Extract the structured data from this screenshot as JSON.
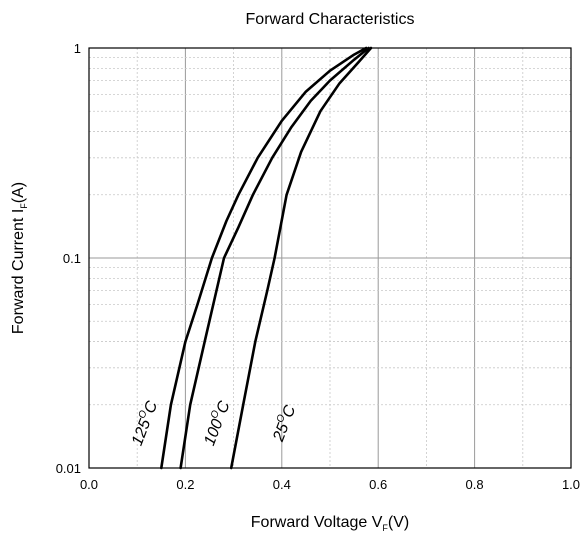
{
  "chart_data": {
    "type": "line",
    "title": "Forward Characteristics",
    "xlabel": {
      "main": "Forward Voltage V",
      "sub": "F",
      "suffix": "(V)"
    },
    "ylabel": {
      "main": "Forward Current I",
      "sub": "F",
      "suffix": "(A)"
    },
    "xlim": [
      0.0,
      1.0
    ],
    "ylim": [
      0.01,
      1
    ],
    "yscale": "log",
    "grid": true,
    "x_ticks": [
      "0.0",
      "0.2",
      "0.4",
      "0.6",
      "0.8",
      "1.0"
    ],
    "x_tick_values": [
      0.0,
      0.2,
      0.4,
      0.6,
      0.8,
      1.0
    ],
    "y_ticks": [
      "0.01",
      "0.1",
      "1"
    ],
    "y_tick_values": [
      0.01,
      0.1,
      1
    ],
    "series": [
      {
        "name": "125°C",
        "label": {
          "base": "125",
          "sup": "O",
          "unit": "C"
        },
        "x": [
          0.15,
          0.17,
          0.2,
          0.225,
          0.255,
          0.285,
          0.31,
          0.35,
          0.4,
          0.45,
          0.5,
          0.55,
          0.575
        ],
        "y": [
          0.01,
          0.02,
          0.04,
          0.06,
          0.1,
          0.15,
          0.2,
          0.3,
          0.45,
          0.62,
          0.78,
          0.93,
          1.0
        ]
      },
      {
        "name": "100°C",
        "label": {
          "base": "100",
          "sup": "O",
          "unit": "C"
        },
        "x": [
          0.19,
          0.21,
          0.24,
          0.28,
          0.31,
          0.34,
          0.38,
          0.42,
          0.46,
          0.5,
          0.55,
          0.58
        ],
        "y": [
          0.01,
          0.02,
          0.04,
          0.1,
          0.14,
          0.2,
          0.3,
          0.42,
          0.56,
          0.7,
          0.88,
          1.0
        ]
      },
      {
        "name": "25°C",
        "label": {
          "base": "25",
          "sup": "O",
          "unit": "C"
        },
        "x": [
          0.295,
          0.32,
          0.345,
          0.37,
          0.385,
          0.41,
          0.44,
          0.48,
          0.52,
          0.56,
          0.585
        ],
        "y": [
          0.01,
          0.02,
          0.04,
          0.07,
          0.1,
          0.2,
          0.32,
          0.5,
          0.68,
          0.86,
          1.0
        ]
      }
    ]
  }
}
